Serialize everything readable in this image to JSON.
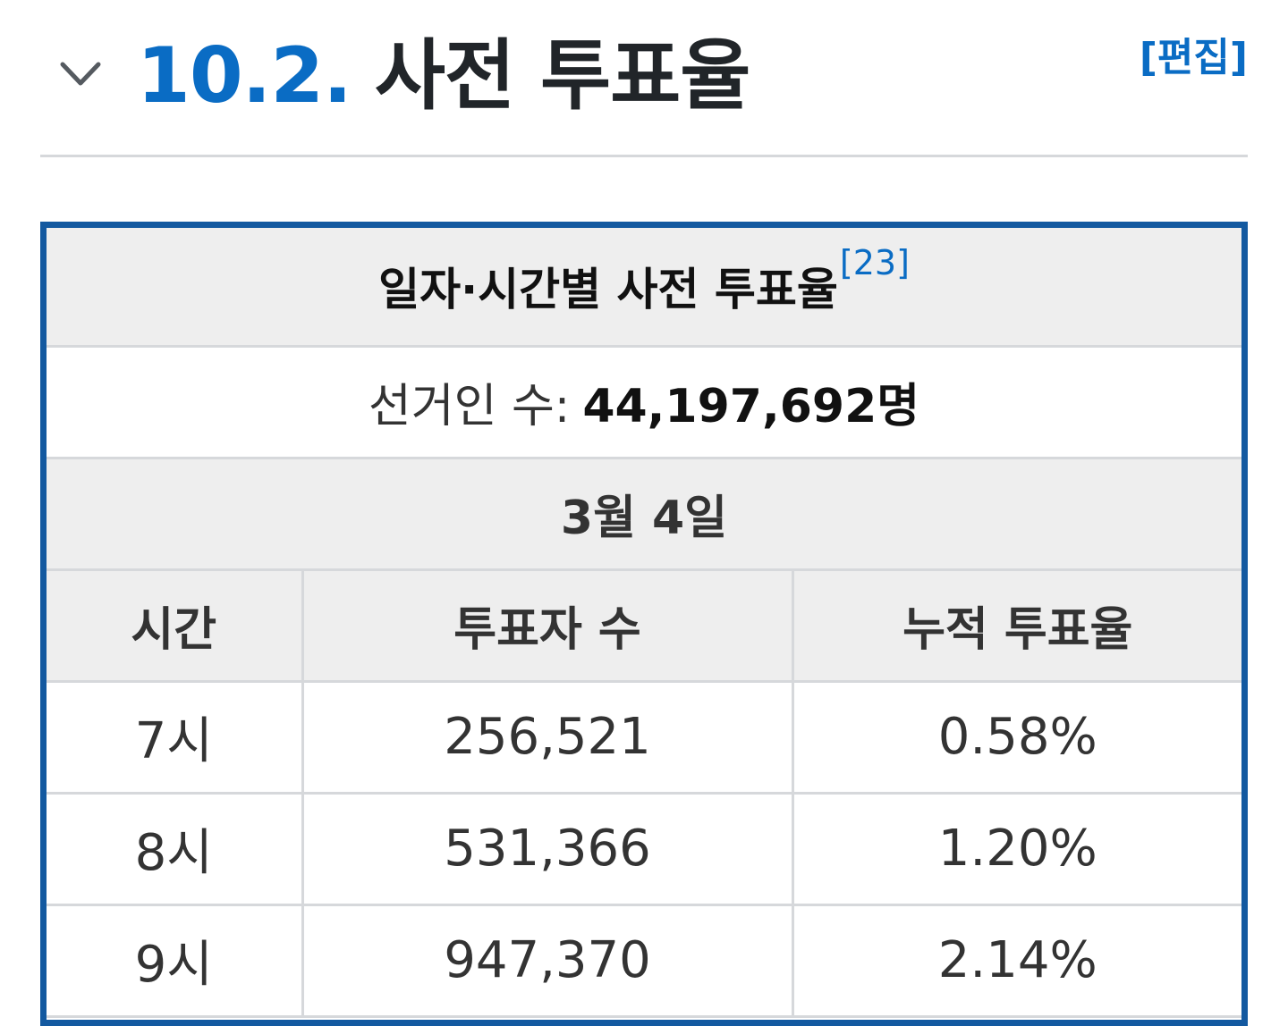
{
  "section": {
    "number": "10.2.",
    "title": "사전 투표율",
    "edit_label": "[편집]"
  },
  "table": {
    "title": "일자·시간별 사전 투표율",
    "footnote": "[23]",
    "electors_label": "선거인 수:",
    "electors_value": "44,197,692명",
    "date": "3월 4일",
    "headers": [
      "시간",
      "투표자 수",
      "누적 투표율"
    ],
    "rows": [
      [
        "7시",
        "256,521",
        "0.58%"
      ],
      [
        "8시",
        "531,366",
        "1.20%"
      ],
      [
        "9시",
        "947,370",
        "2.14%"
      ]
    ]
  },
  "colors": {
    "accent": "#0a6cc4",
    "table_border": "#1359a0",
    "header_bg": "#eeeeee"
  },
  "icons": {
    "toggle": "chevron-down-icon"
  }
}
